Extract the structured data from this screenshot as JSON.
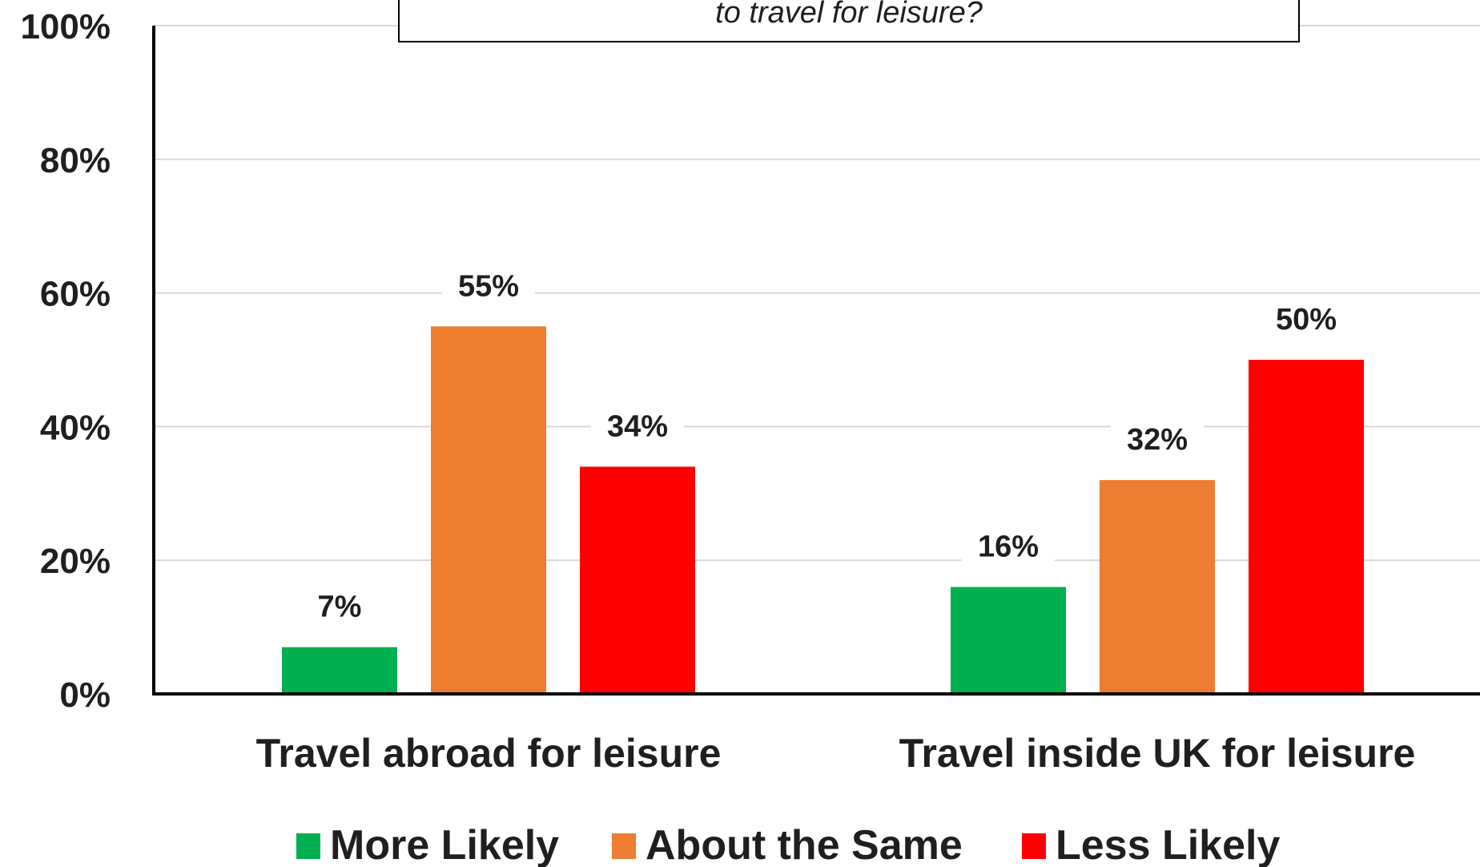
{
  "chart_data": {
    "type": "bar",
    "title_visible_text": "to travel for leisure?",
    "categories": [
      "Travel abroad for leisure",
      "Travel inside UK for leisure"
    ],
    "series": [
      {
        "name": "More Likely",
        "values": [
          7,
          16
        ],
        "color": "#00b050"
      },
      {
        "name": "About the Same",
        "values": [
          55,
          32
        ],
        "color": "#ed7d31"
      },
      {
        "name": "Less Likely",
        "values": [
          34,
          50
        ],
        "color": "#ff0000"
      }
    ],
    "data_labels": [
      [
        "7%",
        "16%"
      ],
      [
        "55%",
        "32%"
      ],
      [
        "34%",
        "50%"
      ]
    ],
    "ylim": [
      0,
      100
    ],
    "yticks": [
      0,
      20,
      40,
      60,
      80,
      100
    ],
    "ytick_labels": [
      "0%",
      "20%",
      "40%",
      "60%",
      "80%",
      "100%"
    ],
    "xlabel": "",
    "ylabel": "",
    "grid": true,
    "legend_position": "bottom"
  }
}
